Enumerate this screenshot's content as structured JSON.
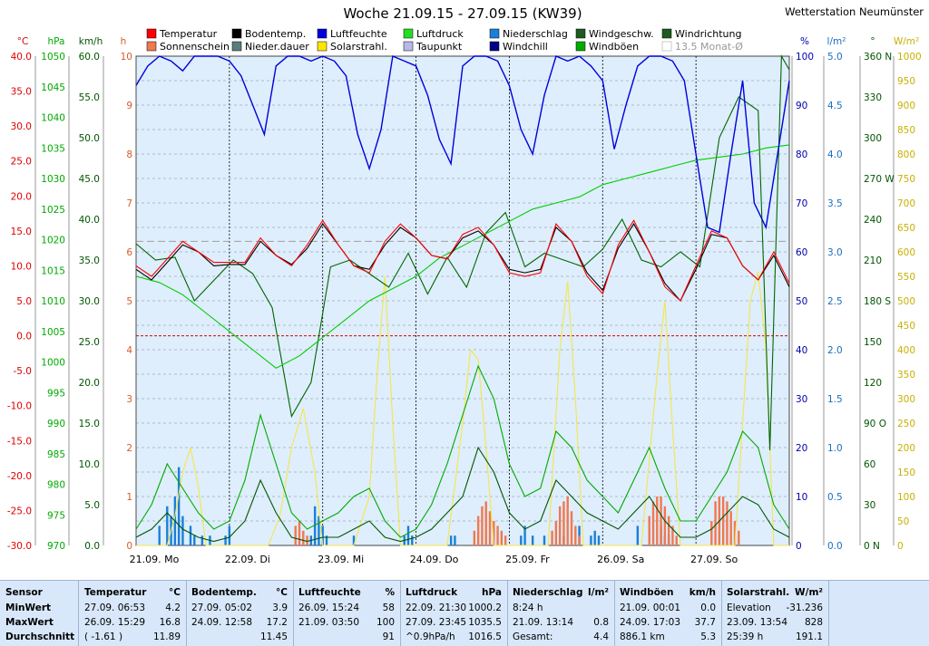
{
  "colors": {
    "plot_bg": "#deeefc",
    "temperature": "#ff0000",
    "soil_temp": "#000000",
    "humidity": "#0000dd",
    "pressure": "#00cc00",
    "rain": "#1a7fd9",
    "wind_speed": "#005500",
    "wind_dir": "#006600",
    "sunshine": "#f07850",
    "solar": "#f5e64a",
    "dewpoint": "#b9b9e8",
    "windchill": "#000088",
    "gusts": "#00aa00",
    "rain_duration": "#5a7d7d"
  },
  "chart_data": {
    "type": "line",
    "title": "Woche 21.09.15 - 27.09.15 (KW39)",
    "station": "Wetterstation Neumünster",
    "x_labels": [
      "21.09.  Mo",
      "22.09.  Di",
      "23.09.  Mi",
      "24.09.  Do",
      "25.09.  Fr",
      "26.09.  Sa",
      "27.09.  So"
    ],
    "x_range_hours": [
      0,
      168
    ],
    "legend": [
      "Temperatur",
      "Bodentemp.",
      "Luftfeuchte",
      "Luftdruck",
      "Niederschlag",
      "Windgeschw.",
      "Windrichtung",
      "Sonnenschein",
      "Nieder.dauer",
      "Solarstrahl.",
      "Taupunkt",
      "Windchill",
      "Windböen",
      "13.5 Monat-Ø"
    ],
    "axes": {
      "temp": {
        "unit": "°C",
        "range": [
          -30,
          40
        ],
        "ticks": [
          "40.0",
          "35.0",
          "30.0",
          "25.0",
          "20.0",
          "15.0",
          "10.0",
          "5.0",
          "0.0",
          "-5.0",
          "-10.0",
          "-15.0",
          "-20.0",
          "-25.0",
          "-30.0"
        ]
      },
      "press": {
        "unit": "hPa",
        "range": [
          970,
          1050
        ],
        "ticks": [
          "1050",
          "1045",
          "1040",
          "1035",
          "1030",
          "1025",
          "1020",
          "1015",
          "1010",
          "1005",
          "1000",
          "995",
          "990",
          "985",
          "980",
          "975",
          "970"
        ]
      },
      "wind": {
        "unit": "km/h",
        "range": [
          0,
          60
        ],
        "ticks": [
          "60.0",
          "55.0",
          "50.0",
          "45.0",
          "40.0",
          "35.0",
          "30.0",
          "25.0",
          "20.0",
          "15.0",
          "10.0",
          "5.0",
          "0.0"
        ]
      },
      "sun": {
        "unit": "h",
        "range": [
          0,
          10
        ],
        "ticks": [
          "10",
          "9",
          "8",
          "7",
          "6",
          "5",
          "4",
          "3",
          "2",
          "1",
          "0"
        ]
      },
      "hum": {
        "unit": "%",
        "range": [
          0,
          100
        ],
        "ticks": [
          "100",
          "90",
          "80",
          "70",
          "60",
          "50",
          "40",
          "30",
          "20",
          "10",
          "0"
        ]
      },
      "rain": {
        "unit": "l/m²",
        "range": [
          0,
          5
        ],
        "ticks": [
          "5.0",
          "4.5",
          "4.0",
          "3.5",
          "3.0",
          "2.5",
          "2.0",
          "1.5",
          "1.0",
          "0.5",
          "0.0"
        ]
      },
      "dir": {
        "unit": "°",
        "range": [
          0,
          360
        ],
        "ticks": [
          "360 N",
          "330",
          "300",
          "270 W",
          "240",
          "210",
          "180 S",
          "150",
          "120",
          "90  O",
          "60",
          "30",
          "0   N"
        ]
      },
      "solar": {
        "unit": "W/m²",
        "range": [
          0,
          1000
        ],
        "ticks": [
          "1000",
          "950",
          "900",
          "850",
          "800",
          "750",
          "700",
          "650",
          "600",
          "550",
          "500",
          "450",
          "400",
          "350",
          "300",
          "250",
          "200",
          "150",
          "100",
          "50",
          "0"
        ]
      }
    },
    "series": [
      {
        "name": "Temperatur",
        "axis": "temp",
        "x": [
          0,
          4,
          8,
          12,
          16,
          20,
          24,
          28,
          32,
          36,
          40,
          44,
          48,
          52,
          56,
          60,
          64,
          68,
          72,
          76,
          80,
          84,
          88,
          92,
          96,
          100,
          104,
          108,
          112,
          116,
          120,
          124,
          128,
          132,
          136,
          140,
          144,
          148,
          152,
          156,
          160,
          164,
          168
        ],
        "y": [
          10,
          8.5,
          11,
          13.5,
          12,
          10.5,
          10.5,
          10.5,
          14,
          11.5,
          10,
          13,
          16.5,
          13,
          10,
          9,
          13.5,
          16,
          14,
          11.5,
          11,
          14.5,
          15.5,
          13,
          9,
          8.5,
          9,
          16,
          13.5,
          8.5,
          6,
          13,
          16.5,
          12,
          7,
          5,
          10,
          15,
          14,
          10,
          8,
          12,
          7.5
        ]
      },
      {
        "name": "Bodentemp.",
        "axis": "temp",
        "x": [
          0,
          4,
          8,
          12,
          16,
          20,
          24,
          28,
          32,
          36,
          40,
          44,
          48,
          52,
          56,
          60,
          64,
          68,
          72,
          76,
          80,
          84,
          88,
          92,
          96,
          100,
          104,
          108,
          112,
          116,
          120,
          124,
          128,
          132,
          136,
          140,
          144,
          148,
          152,
          156,
          160,
          164,
          168
        ],
        "y": [
          9.5,
          8,
          10.5,
          13,
          12,
          10,
          10.2,
          10.2,
          13.5,
          11.5,
          10.2,
          12.5,
          16,
          13,
          10,
          9.5,
          13,
          15.5,
          14,
          11.5,
          11,
          14,
          15,
          13,
          9.5,
          9,
          9.5,
          15.5,
          13.5,
          9,
          6.5,
          12.5,
          16,
          12,
          7.5,
          5,
          9.5,
          14.5,
          14,
          10,
          8,
          11.5,
          7
        ]
      },
      {
        "name": "Luftdruck",
        "axis": "press",
        "x": [
          0,
          6,
          12,
          18,
          24,
          30,
          36,
          42,
          48,
          54,
          60,
          66,
          72,
          78,
          84,
          90,
          96,
          102,
          108,
          114,
          120,
          126,
          132,
          138,
          144,
          150,
          156,
          162,
          168
        ],
        "y": [
          1014,
          1013,
          1011,
          1008,
          1005,
          1002,
          999,
          1001,
          1004,
          1007,
          1010,
          1012,
          1014,
          1017,
          1019,
          1021,
          1023,
          1025,
          1026,
          1027,
          1029,
          1030,
          1031,
          1032,
          1033,
          1033.5,
          1034,
          1035,
          1035.5
        ]
      },
      {
        "name": "Luftfeuchte",
        "axis": "hum",
        "x": [
          0,
          3,
          6,
          9,
          12,
          15,
          18,
          21,
          24,
          27,
          30,
          33,
          36,
          39,
          42,
          45,
          48,
          51,
          54,
          57,
          60,
          63,
          66,
          69,
          72,
          75,
          78,
          81,
          84,
          87,
          90,
          93,
          96,
          99,
          102,
          105,
          108,
          111,
          114,
          117,
          120,
          123,
          126,
          129,
          132,
          135,
          138,
          141,
          144,
          147,
          150,
          153,
          156,
          159,
          162,
          165,
          168
        ],
        "y": [
          94,
          98,
          100,
          99,
          97,
          100,
          100,
          100,
          99,
          96,
          90,
          84,
          98,
          100,
          100,
          99,
          100,
          99,
          96,
          84,
          77,
          85,
          100,
          99,
          98,
          92,
          83,
          78,
          98,
          100,
          100,
          99,
          94,
          85,
          80,
          92,
          100,
          99,
          100,
          98,
          95,
          81,
          90,
          98,
          100,
          100,
          99,
          95,
          80,
          65,
          64,
          80,
          95,
          70,
          65,
          80,
          95
        ]
      },
      {
        "name": "Windgeschw.",
        "axis": "wind",
        "x": [
          0,
          4,
          8,
          12,
          16,
          20,
          24,
          28,
          32,
          36,
          40,
          44,
          48,
          52,
          56,
          60,
          64,
          68,
          72,
          76,
          80,
          84,
          88,
          92,
          96,
          100,
          104,
          108,
          112,
          116,
          120,
          124,
          128,
          132,
          136,
          140,
          144,
          148,
          152,
          156,
          160,
          164,
          168
        ],
        "y": [
          1,
          2,
          4,
          2,
          1,
          0.5,
          1,
          3,
          8,
          4,
          1,
          0.5,
          1,
          1,
          2,
          3,
          1,
          0.5,
          1,
          2,
          4,
          6,
          12,
          9,
          4,
          2,
          3,
          8,
          6,
          4,
          3,
          2,
          4,
          6,
          3,
          1,
          1,
          2,
          4,
          6,
          5,
          2,
          1
        ]
      },
      {
        "name": "Windböen",
        "axis": "wind",
        "x": [
          0,
          4,
          8,
          12,
          16,
          20,
          24,
          28,
          32,
          36,
          40,
          44,
          48,
          52,
          56,
          60,
          64,
          68,
          72,
          76,
          80,
          84,
          88,
          92,
          96,
          100,
          104,
          108,
          112,
          116,
          120,
          124,
          128,
          132,
          136,
          140,
          144,
          148,
          152,
          156,
          160,
          164,
          168
        ],
        "y": [
          2,
          5,
          10,
          7,
          4,
          2,
          3,
          8,
          16,
          10,
          4,
          2,
          3,
          4,
          6,
          7,
          3,
          1,
          2,
          5,
          10,
          16,
          22,
          18,
          10,
          6,
          7,
          14,
          12,
          8,
          6,
          4,
          8,
          12,
          7,
          3,
          3,
          6,
          9,
          14,
          12,
          5,
          2
        ]
      },
      {
        "name": "Windrichtung",
        "axis": "dir",
        "x": [
          0,
          5,
          10,
          15,
          20,
          25,
          30,
          35,
          40,
          45,
          50,
          55,
          60,
          65,
          70,
          75,
          80,
          85,
          90,
          95,
          100,
          105,
          110,
          115,
          120,
          125,
          130,
          135,
          140,
          145,
          150,
          155,
          160,
          163,
          166,
          168
        ],
        "y": [
          222,
          210,
          212,
          180,
          195,
          210,
          200,
          175,
          95,
          120,
          205,
          210,
          200,
          190,
          215,
          185,
          212,
          190,
          230,
          245,
          205,
          215,
          210,
          205,
          218,
          240,
          210,
          205,
          216,
          205,
          300,
          330,
          320,
          70,
          360,
          350
        ]
      },
      {
        "name": "Solarstrahl.",
        "axis": "solar",
        "x": [
          0,
          8,
          10,
          12,
          14,
          16,
          18,
          24,
          34,
          37,
          40,
          43,
          46,
          48,
          56,
          60,
          62,
          64,
          66,
          68,
          72,
          80,
          84,
          86,
          88,
          90,
          92,
          96,
          106,
          109,
          111,
          113,
          115,
          120,
          130,
          134,
          136,
          138,
          140,
          144,
          154,
          158,
          160,
          162,
          164,
          168
        ],
        "y": [
          0,
          0,
          60,
          150,
          200,
          120,
          0,
          0,
          0,
          60,
          200,
          280,
          150,
          0,
          0,
          100,
          350,
          550,
          250,
          0,
          0,
          0,
          250,
          400,
          380,
          200,
          0,
          0,
          0,
          400,
          540,
          300,
          0,
          0,
          0,
          350,
          500,
          240,
          0,
          0,
          0,
          500,
          560,
          400,
          0,
          0
        ]
      },
      {
        "name": "Niederschlag",
        "axis": "rain",
        "x": [
          6,
          8,
          9,
          10,
          11,
          12,
          14,
          15,
          17,
          19,
          23,
          24,
          45,
          46,
          47,
          48,
          49,
          56,
          69,
          70,
          71,
          81,
          82,
          99,
          100,
          102,
          105,
          110,
          114,
          117,
          118,
          119,
          129,
          135,
          136,
          137
        ],
        "y": [
          0.2,
          0.4,
          0.3,
          0.5,
          0.8,
          0.3,
          0.2,
          0.1,
          0.1,
          0.1,
          0.1,
          0.2,
          0.1,
          0.4,
          0.3,
          0.2,
          0.1,
          0.1,
          0.1,
          0.2,
          0.1,
          0.1,
          0.1,
          0.1,
          0.2,
          0.1,
          0.1,
          0.1,
          0.2,
          0.1,
          0.15,
          0.1,
          0.2,
          0.2,
          0.1,
          0.1
        ]
      },
      {
        "name": "Sonnenschein",
        "axis": "sun",
        "x": [
          41,
          42,
          43,
          44,
          87,
          88,
          89,
          90,
          91,
          92,
          93,
          94,
          95,
          107,
          108,
          109,
          110,
          111,
          112,
          113,
          114,
          132,
          133,
          134,
          135,
          136,
          137,
          138,
          139,
          148,
          149,
          150,
          151,
          152,
          153,
          154,
          155
        ],
        "y": [
          0.4,
          0.5,
          0.3,
          0.2,
          0.3,
          0.6,
          0.8,
          0.9,
          0.7,
          0.5,
          0.4,
          0.3,
          0.2,
          0.3,
          0.5,
          0.8,
          0.9,
          1,
          0.7,
          0.4,
          0.2,
          0.6,
          0.9,
          1,
          1,
          0.8,
          0.6,
          0.4,
          0.2,
          0.5,
          0.9,
          1,
          1,
          0.9,
          0.7,
          0.5,
          0.3
        ]
      }
    ],
    "reference_lines": [
      {
        "name": "0 °C",
        "axis": "temp",
        "value": 0
      },
      {
        "name": "13.5 Monat-Ø",
        "axis": "temp",
        "value": 13.5
      }
    ]
  },
  "stats": {
    "sensor": {
      "header": "Sensor",
      "rows": [
        "MinWert",
        "MaxWert",
        "Durchschnitt"
      ]
    },
    "columns": [
      {
        "title": "Temperatur",
        "unit": "°C",
        "rows": [
          [
            "27.09.  06:53",
            "4.2"
          ],
          [
            "26.09.  15:29",
            "16.8"
          ],
          [
            "( -1.61 )",
            "11.89"
          ]
        ]
      },
      {
        "title": "Bodentemp.",
        "unit": "°C",
        "rows": [
          [
            "27.09.  05:02",
            "3.9"
          ],
          [
            "24.09.  12:58",
            "17.2"
          ],
          [
            "",
            "11.45"
          ]
        ]
      },
      {
        "title": "Luftfeuchte",
        "unit": "%",
        "rows": [
          [
            "26.09.  15:24",
            "58"
          ],
          [
            "21.09.  03:50",
            "100"
          ],
          [
            "",
            "91"
          ]
        ]
      },
      {
        "title": "Luftdruck",
        "unit": "hPa",
        "rows": [
          [
            "22.09.  21:30",
            "1000.2"
          ],
          [
            "27.09.  23:45",
            "1035.5"
          ],
          [
            "^0.9hPa/h",
            "1016.5"
          ]
        ]
      },
      {
        "title": "Niederschlag",
        "unit": "l/m²",
        "rows": [
          [
            "8:24 h",
            ""
          ],
          [
            "21.09.  13:14",
            "0.8"
          ],
          [
            "Gesamt:",
            "4.4"
          ]
        ]
      },
      {
        "title": "Windböen",
        "unit": "km/h",
        "rows": [
          [
            "21.09.  00:01",
            "0.0"
          ],
          [
            "24.09.  17:03",
            "37.7"
          ],
          [
            "886.1 km",
            "5.3"
          ]
        ]
      },
      {
        "title": "Solarstrahl.",
        "unit": "W/m²",
        "rows": [
          [
            "Elevation",
            "-31.236"
          ],
          [
            "23.09.  13:54",
            "828"
          ],
          [
            "25:39 h",
            "191.1"
          ]
        ]
      }
    ]
  }
}
